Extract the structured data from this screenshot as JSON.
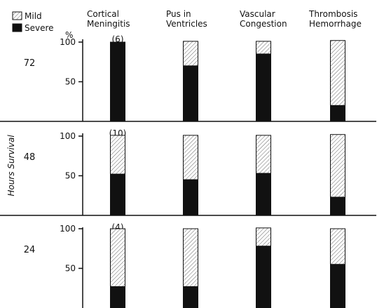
{
  "chart_data": {
    "type": "bar",
    "stacked": true,
    "categories": [
      "Cortical Meningitis",
      "Pus in Ventricles",
      "Vascular Congestion",
      "Thrombosis Hemorrhage"
    ],
    "category_lines": [
      [
        "Cortical",
        "Meningitis"
      ],
      [
        "Pus in",
        "Ventricles"
      ],
      [
        "Vascular",
        "Congestion"
      ],
      [
        "Thrombosis",
        "Hemorrhage"
      ]
    ],
    "legend": {
      "position": "top-left",
      "entries": [
        {
          "name": "Mild",
          "pattern": "hatched"
        },
        {
          "name": "Severe",
          "pattern": "solid"
        }
      ]
    },
    "unit_label": "%",
    "ylabel": "Hours Survival",
    "ylim": [
      0,
      100
    ],
    "yticks": [
      50,
      100
    ],
    "panels": [
      {
        "hours": "72",
        "count_label": "(6)",
        "severe": [
          100,
          70,
          85,
          20
        ],
        "mild": [
          0,
          31,
          16,
          82
        ]
      },
      {
        "hours": "48",
        "count_label": "(10)",
        "severe": [
          52,
          45,
          53,
          23
        ],
        "mild": [
          49,
          56,
          48,
          79
        ]
      },
      {
        "hours": "24",
        "count_label": "(4)",
        "severe": [
          27,
          27,
          78,
          55
        ],
        "mild": [
          73,
          73,
          23,
          45
        ]
      }
    ]
  }
}
